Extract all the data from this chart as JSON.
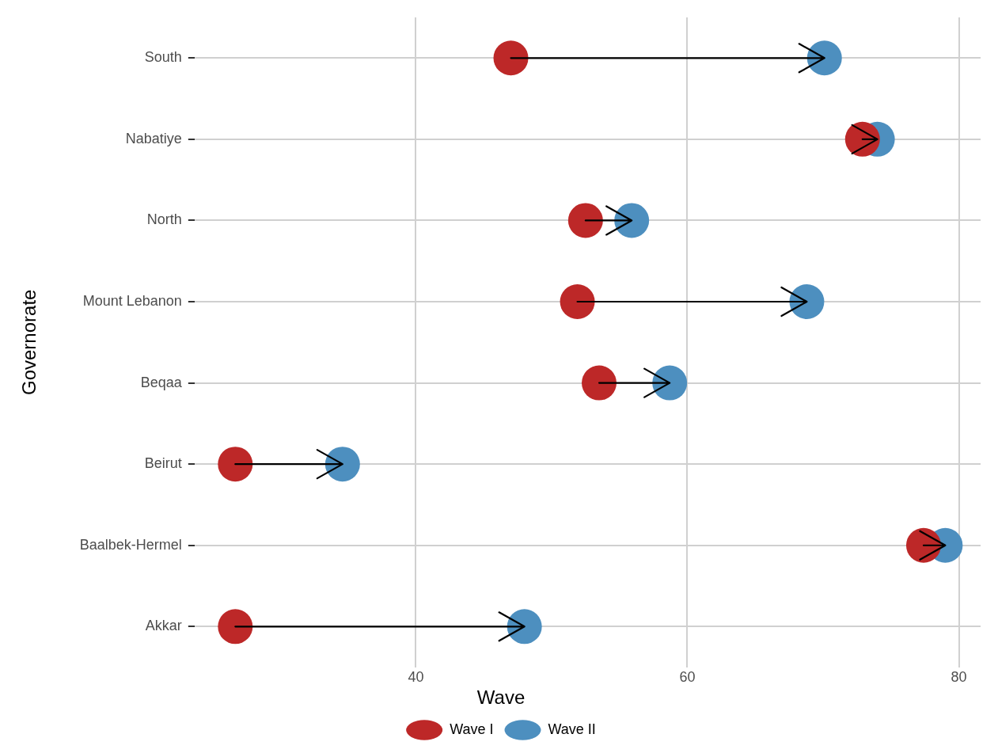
{
  "chart_data": {
    "type": "scatter",
    "orientation": "horizontal",
    "ylabel": "Governorate",
    "legend_title": "Wave",
    "categories": [
      "South",
      "Nabatiye",
      "North",
      "Mount Lebanon",
      "Beqaa",
      "Beirut",
      "Baalbek-Hermel",
      "Akkar"
    ],
    "series": [
      {
        "name": "Wave I",
        "color": "#bd2828",
        "values": [
          47.0,
          72.9,
          52.5,
          51.9,
          53.5,
          26.7,
          77.4,
          26.7
        ]
      },
      {
        "name": "Wave II",
        "color": "#4d8fbf",
        "values": [
          70.1,
          74.0,
          55.9,
          68.8,
          58.7,
          34.6,
          79.0,
          48.0
        ]
      }
    ],
    "xlim": [
      23.7,
      81.6
    ],
    "xticks": [
      40,
      60,
      80
    ],
    "grid": true,
    "legend": "bottom",
    "marker": "circle"
  }
}
